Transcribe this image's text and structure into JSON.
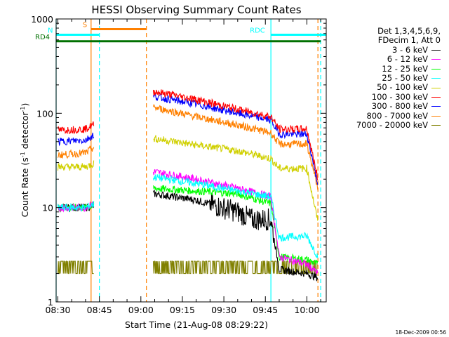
{
  "chart_data": {
    "type": "line",
    "title": "HESSI Observing Summary Count Rates",
    "xlabel": "Start Time (21-Aug-08 08:29:22)",
    "ylabel_main": "Count Rate (s",
    "ylabel_sup1": "-1",
    "ylabel_mid": " detector",
    "ylabel_sup2": "-1",
    "ylabel_end": ")",
    "ylog": true,
    "ylim": [
      1,
      1000
    ],
    "xlim": [
      "08:29:22",
      "10:07:00"
    ],
    "x_ticks": [
      "08:30",
      "08:45",
      "09:00",
      "09:15",
      "09:30",
      "09:45",
      "10:00"
    ],
    "y_ticks": [
      "1",
      "10",
      "100",
      "1000"
    ],
    "legend_header": [
      "Det 1,3,4,5,6,9,",
      "FDecim 1, Att 0"
    ],
    "series": [
      {
        "name": "3 - 6 keV",
        "color": "#000000",
        "x": [
          "08:30",
          "08:40",
          "09:05",
          "09:20",
          "09:35",
          "09:40",
          "09:47",
          "09:50",
          "10:00",
          "10:04"
        ],
        "y": [
          10.0,
          10.0,
          14.0,
          12.0,
          9.0,
          7.5,
          7.5,
          2.2,
          2.0,
          1.8
        ]
      },
      {
        "name": "6 - 12 keV",
        "color": "#ff00ff",
        "x": [
          "08:30",
          "08:40",
          "09:05",
          "09:20",
          "09:35",
          "09:47",
          "09:50",
          "10:00",
          "10:04"
        ],
        "y": [
          10.0,
          10.0,
          24.0,
          20.0,
          16.0,
          13.0,
          3.0,
          2.5,
          2.0
        ]
      },
      {
        "name": "12 - 25 keV",
        "color": "#00ff00",
        "x": [
          "08:30",
          "08:40",
          "09:05",
          "09:20",
          "09:35",
          "09:47",
          "09:50",
          "10:00",
          "10:04"
        ],
        "y": [
          10.0,
          10.0,
          16.0,
          15.0,
          14.0,
          11.0,
          3.0,
          2.8,
          2.5
        ]
      },
      {
        "name": "25 - 50 keV",
        "color": "#00ffff",
        "x": [
          "08:30",
          "08:40",
          "09:05",
          "09:20",
          "09:35",
          "09:47",
          "09:50",
          "10:00",
          "10:04"
        ],
        "y": [
          10.0,
          10.0,
          21.0,
          18.0,
          15.0,
          13.0,
          4.8,
          5.0,
          3.0
        ]
      },
      {
        "name": "50 - 100 keV",
        "color": "#d0d000",
        "x": [
          "08:30",
          "08:40",
          "09:05",
          "09:20",
          "09:35",
          "09:47",
          "09:50",
          "10:00",
          "10:04"
        ],
        "y": [
          27.0,
          27.0,
          54.0,
          46.0,
          40.0,
          33.0,
          26.0,
          26.0,
          7.0
        ]
      },
      {
        "name": "100 - 300 keV",
        "color": "#ff0000",
        "x": [
          "08:30",
          "08:40",
          "09:05",
          "09:20",
          "09:35",
          "09:47",
          "09:50",
          "10:00",
          "10:04"
        ],
        "y": [
          66.0,
          68.0,
          170.0,
          140.0,
          110.0,
          92.0,
          68.0,
          68.0,
          20.0
        ]
      },
      {
        "name": "300 - 800 keV",
        "color": "#0000ff",
        "x": [
          "08:30",
          "08:40",
          "09:05",
          "09:20",
          "09:35",
          "09:47",
          "09:50",
          "10:00",
          "10:04"
        ],
        "y": [
          50.0,
          52.0,
          150.0,
          125.0,
          100.0,
          85.0,
          60.0,
          60.0,
          18.0
        ]
      },
      {
        "name": "800 - 7000 keV",
        "color": "#ff8000",
        "x": [
          "08:30",
          "08:40",
          "09:05",
          "09:20",
          "09:35",
          "09:47",
          "09:50",
          "10:00",
          "10:04"
        ],
        "y": [
          36.0,
          38.0,
          115.0,
          92.0,
          75.0,
          62.0,
          47.0,
          47.0,
          16.0
        ]
      },
      {
        "name": "7000 - 20000 keV",
        "color": "#808000",
        "x": [
          "08:30",
          "08:40",
          "09:15",
          "09:25",
          "09:35",
          "09:40",
          "09:50",
          "10:04"
        ],
        "y": [
          2.0,
          2.0,
          2.7,
          2.7,
          2.7,
          2.0,
          2.0,
          1.5
        ]
      }
    ],
    "flags": [
      {
        "label": "S",
        "color": "#ff8000",
        "x_start": "08:42",
        "x_end": "09:02",
        "y": 780
      },
      {
        "label": "N",
        "color": "#00ffff",
        "x_start": "08:29:22",
        "x_end": "08:45",
        "y": 680
      },
      {
        "label": "RD4",
        "color": "#007000",
        "x_start": "08:29:22",
        "x_end": "10:05",
        "y": 580
      },
      {
        "label": "RDC",
        "color": "#00ffff",
        "x_start": "09:47",
        "x_end": "10:07",
        "y": 680
      }
    ],
    "vlines": [
      {
        "x": "08:29:22",
        "color": "#00ffff",
        "style": "solid"
      },
      {
        "x": "08:42",
        "color": "#ff8000",
        "style": "solid"
      },
      {
        "x": "08:45",
        "color": "#00ffff",
        "style": "dashed"
      },
      {
        "x": "09:02",
        "color": "#ff8000",
        "style": "dashed"
      },
      {
        "x": "09:47",
        "color": "#00ffff",
        "style": "solid"
      },
      {
        "x": "10:04",
        "color": "#ff8000",
        "style": "dashed"
      },
      {
        "x": "10:05",
        "color": "#00ffff",
        "style": "dashed"
      }
    ],
    "grid": false,
    "legend_position": "right"
  },
  "timestamp": "18-Dec-2009 00:56"
}
